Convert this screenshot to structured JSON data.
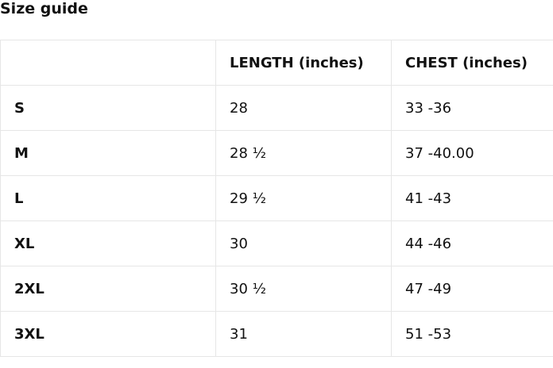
{
  "title": "Size guide",
  "table": {
    "headers": [
      "",
      "LENGTH (inches)",
      "CHEST (inches)"
    ],
    "rows": [
      [
        "S",
        "28",
        "33 -36"
      ],
      [
        "M",
        "28 ½",
        "37 -40.00"
      ],
      [
        "L",
        "29 ½",
        "41 -43"
      ],
      [
        "XL",
        "30",
        "44 -46"
      ],
      [
        "2XL",
        "30 ½",
        "47 -49"
      ],
      [
        "3XL",
        "31",
        "51 -53"
      ]
    ]
  }
}
